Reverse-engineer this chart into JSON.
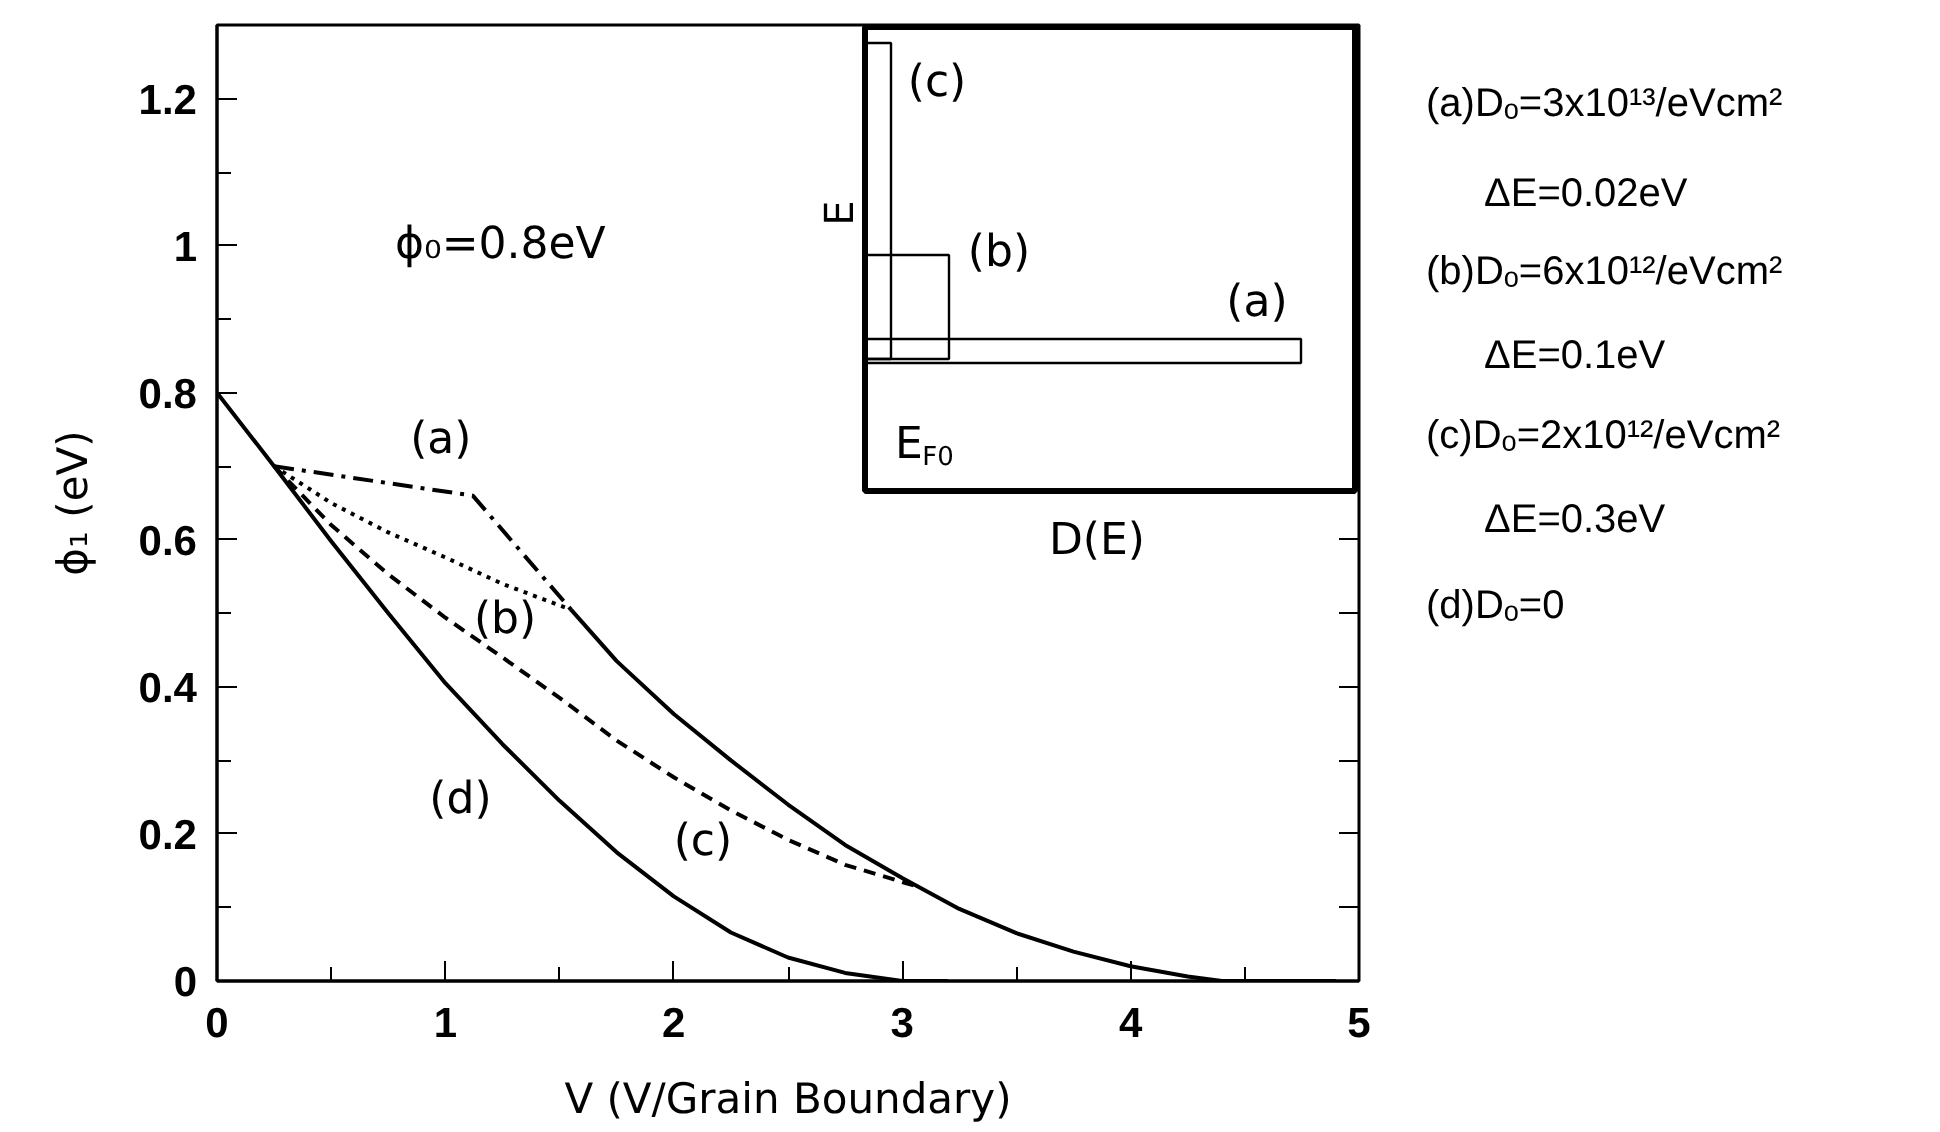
{
  "chart_data": {
    "type": "line",
    "xlabel": "V (V/Grain Boundary)",
    "ylabel": "ϕ₁ (eV)",
    "xlim": [
      0,
      5
    ],
    "ylim": [
      0,
      1.3
    ],
    "xticks": [
      0,
      {
        "value": 0.5,
        "label": null
      },
      1,
      {
        "value": 1.5,
        "label": null
      },
      2,
      {
        "value": 2.5,
        "label": null
      },
      3,
      {
        "value": 3.5,
        "label": null
      },
      4,
      {
        "value": 4.5,
        "label": null
      },
      5
    ],
    "yticks": [
      0,
      {
        "value": 0.1,
        "label": null
      },
      0.2,
      {
        "value": 0.3,
        "label": null
      },
      0.4,
      {
        "value": 0.5,
        "label": null
      },
      0.6,
      {
        "value": 0.7,
        "label": null
      },
      0.8,
      {
        "value": 0.9,
        "label": null
      },
      1,
      {
        "value": 1.1,
        "label": null
      },
      1.2
    ],
    "series": [
      {
        "name": "(a)",
        "color": "#000000",
        "line_style": "dashdot",
        "x": [
          0.25,
          1.12,
          1.55
        ],
        "values": [
          0.7,
          0.66,
          0.505
        ]
      },
      {
        "name": "(b)",
        "color": "#000000",
        "line_style": "dotted",
        "x": [
          0.25,
          0.5,
          0.75,
          1.0,
          1.25,
          1.55
        ],
        "values": [
          0.7,
          0.65,
          0.61,
          0.576,
          0.54,
          0.505
        ]
      },
      {
        "name": "(c)",
        "color": "#000000",
        "line_style": "dashed",
        "x": [
          0.25,
          0.5,
          0.75,
          1.0,
          1.25,
          1.5,
          1.75,
          2.0,
          2.25,
          2.5,
          2.75,
          3.05
        ],
        "values": [
          0.7,
          0.62,
          0.553,
          0.494,
          0.44,
          0.385,
          0.327,
          0.277,
          0.232,
          0.192,
          0.158,
          0.13
        ]
      },
      {
        "name": "(d)",
        "color": "#000000",
        "line_style": "solid",
        "x": [
          0,
          0.25,
          0.5,
          0.75,
          1.0,
          1.25,
          1.5,
          1.75,
          2.0,
          2.25,
          2.5,
          2.75,
          3.0,
          3.2
        ],
        "values": [
          0.8,
          0.7,
          0.598,
          0.5,
          0.405,
          0.322,
          0.245,
          0.175,
          0.115,
          0.066,
          0.032,
          0.011,
          0.0,
          0.0
        ]
      },
      {
        "color": "#000000",
        "line_style": "solid",
        "x": [
          1.55,
          1.75,
          2.0,
          2.25,
          2.5,
          2.75,
          3.0,
          3.25,
          3.5,
          3.75,
          4.0,
          4.25,
          4.4,
          4.9
        ],
        "values": [
          0.505,
          0.435,
          0.363,
          0.3,
          0.24,
          0.185,
          0.14,
          0.098,
          0.065,
          0.04,
          0.02,
          0.006,
          0.0,
          0.0
        ]
      }
    ],
    "annotations": [
      "ϕ₀=0.8eV",
      "(a)Dₒ=3x10¹³/eVcm²",
      "ΔE=0.02eV",
      "(b)Dₒ=6x10¹²/eVcm²",
      "ΔE=0.1eV",
      "(c)Dₒ=2x10¹²/eVcm²",
      "ΔE=0.3eV",
      "(d)Dₒ=0",
      "(c)",
      "(b)",
      "(a)",
      "E",
      "D(E)",
      "E$_{F0}$"
    ]
  }
}
